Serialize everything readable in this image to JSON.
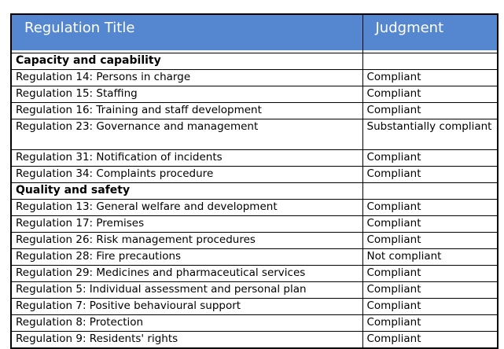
{
  "colors": {
    "header_bg": "#5587D1",
    "header_text": "#FFFFFF",
    "border": "#000000",
    "body_text": "#000000",
    "page_bg": "#FFFFFF"
  },
  "table": {
    "columns": {
      "title": "Regulation Title",
      "judgment": "Judgment"
    },
    "sections": [
      {
        "title": "Capacity and capability",
        "rows": [
          {
            "title": "Regulation 14: Persons in charge",
            "judgment": "Compliant"
          },
          {
            "title": "Regulation 15: Staffing",
            "judgment": "Compliant"
          },
          {
            "title": "Regulation 16: Training and staff development",
            "judgment": "Compliant"
          },
          {
            "title": "Regulation 23: Governance and management",
            "judgment": "Substantially compliant"
          },
          {
            "title": "Regulation 31: Notification of incidents",
            "judgment": "Compliant"
          },
          {
            "title": "Regulation 34: Complaints procedure",
            "judgment": "Compliant"
          }
        ]
      },
      {
        "title": "Quality and safety",
        "rows": [
          {
            "title": "Regulation 13: General welfare and development",
            "judgment": "Compliant"
          },
          {
            "title": "Regulation 17: Premises",
            "judgment": "Compliant"
          },
          {
            "title": "Regulation 26: Risk management procedures",
            "judgment": "Compliant"
          },
          {
            "title": "Regulation 28: Fire precautions",
            "judgment": "Not compliant"
          },
          {
            "title": "Regulation 29: Medicines and pharmaceutical services",
            "judgment": "Compliant"
          },
          {
            "title": "Regulation 5: Individual assessment and personal plan",
            "judgment": "Compliant"
          },
          {
            "title": "Regulation 7: Positive behavioural support",
            "judgment": "Compliant"
          },
          {
            "title": "Regulation 8: Protection",
            "judgment": "Compliant"
          },
          {
            "title": "Regulation 9: Residents' rights",
            "judgment": "Compliant"
          }
        ]
      }
    ]
  }
}
